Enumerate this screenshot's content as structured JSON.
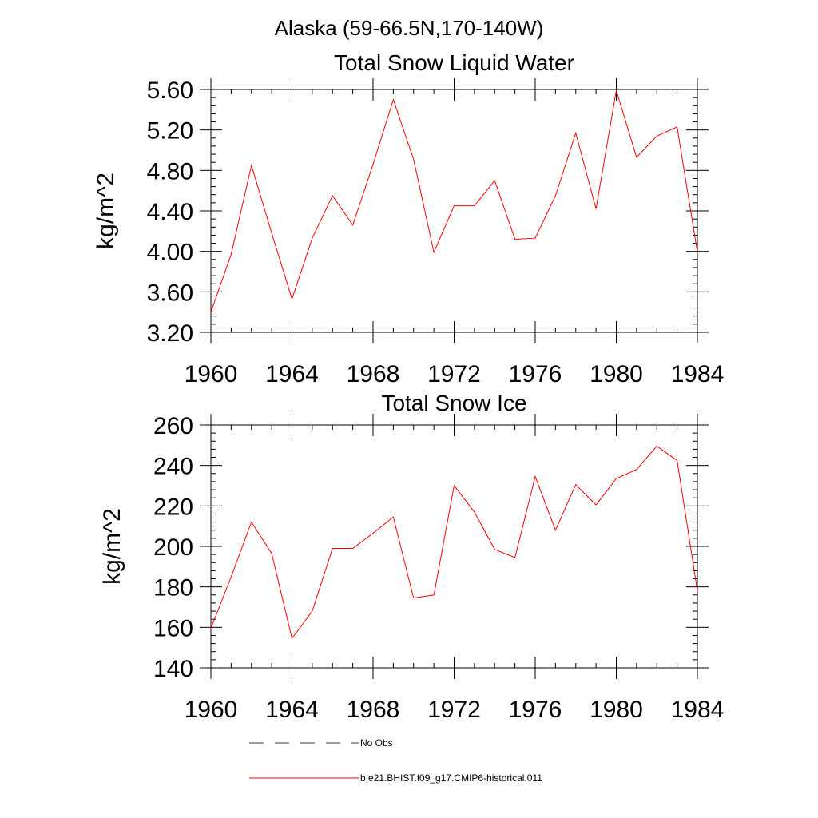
{
  "figure": {
    "title": "Alaska (59-66.5N,170-140W)"
  },
  "legend": {
    "entries": [
      {
        "label": "No Obs",
        "style": "dashed",
        "color": "#3a3a5a"
      },
      {
        "label": "b.e21.BHIST.f09_g17.CMIP6-historical.011",
        "style": "solid",
        "color": "#ff0000"
      }
    ]
  },
  "chart_data": [
    {
      "type": "line",
      "title": "Total Snow Liquid Water",
      "xlabel": "",
      "ylabel": "kg/m^2",
      "xlim": [
        1960,
        1984
      ],
      "ylim": [
        3.2,
        5.6
      ],
      "xticks": [
        "1960",
        "1964",
        "1968",
        "1972",
        "1976",
        "1980",
        "1984"
      ],
      "yticks": [
        "3.20",
        "3.60",
        "4.00",
        "4.40",
        "4.80",
        "5.20",
        "5.60"
      ],
      "grid": false,
      "series": [
        {
          "name": "b.e21.BHIST.f09_g17.CMIP6-historical.011",
          "color": "#ff0000",
          "x": [
            1960,
            1961,
            1962,
            1963,
            1964,
            1965,
            1966,
            1967,
            1968,
            1969,
            1970,
            1971,
            1972,
            1973,
            1974,
            1975,
            1976,
            1977,
            1978,
            1979,
            1980,
            1981,
            1982,
            1983,
            1984
          ],
          "y": [
            3.4,
            3.97,
            4.85,
            4.18,
            3.53,
            4.13,
            4.55,
            4.26,
            4.86,
            5.5,
            4.91,
            3.99,
            4.45,
            4.45,
            4.7,
            4.12,
            4.13,
            4.55,
            5.17,
            4.42,
            5.59,
            4.93,
            5.14,
            5.23,
            3.99
          ]
        }
      ]
    },
    {
      "type": "line",
      "title": "Total Snow Ice",
      "xlabel": "",
      "ylabel": "kg/m^2",
      "xlim": [
        1960,
        1984
      ],
      "ylim": [
        140,
        260
      ],
      "xticks": [
        "1960",
        "1964",
        "1968",
        "1972",
        "1976",
        "1980",
        "1984"
      ],
      "yticks": [
        "140",
        "160",
        "180",
        "200",
        "220",
        "240",
        "260"
      ],
      "grid": false,
      "series": [
        {
          "name": "b.e21.BHIST.f09_g17.CMIP6-historical.011",
          "color": "#ff0000",
          "x": [
            1960,
            1961,
            1962,
            1963,
            1964,
            1965,
            1966,
            1967,
            1968,
            1969,
            1970,
            1971,
            1972,
            1973,
            1974,
            1975,
            1976,
            1977,
            1978,
            1979,
            1980,
            1981,
            1982,
            1983,
            1984
          ],
          "y": [
            159.5,
            185,
            212,
            196.5,
            154.5,
            168,
            199,
            199,
            206.5,
            214.5,
            174.5,
            176,
            230,
            217,
            198.5,
            194.5,
            234.5,
            208,
            230.5,
            220.5,
            233.5,
            238,
            249.5,
            242.5,
            178
          ]
        }
      ]
    }
  ]
}
